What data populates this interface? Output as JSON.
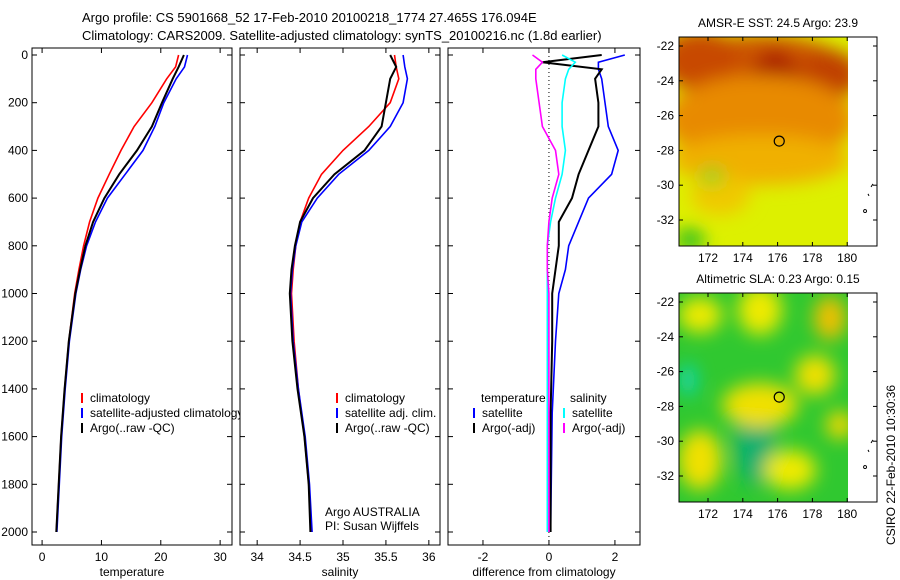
{
  "header": {
    "line1": "Argo profile: CS 5901668_52 17-Feb-2010 20100218_1774 27.465S 176.094E",
    "line2": "Climatology: CARS2009. Satellite-adjusted climatology: synTS_20100216.nc (1.8d earlier)"
  },
  "colors": {
    "climatology": "#ff0000",
    "satellite": "#0000ff",
    "argo": "#000000",
    "sal_satellite": "#00ffff",
    "sal_argo": "#ff00ff"
  },
  "credit": {
    "line1": "Argo AUSTRALIA",
    "line2": "PI: Susan Wijffels"
  },
  "timestamp": "CSIRO 22-Feb-2010 10:30:36",
  "chart_data": [
    {
      "type": "line",
      "id": "temp",
      "xlabel": "temperature",
      "ylabel": "",
      "xlim": [
        -1.7,
        32
      ],
      "ylim": [
        0,
        2000
      ],
      "y_reversed": true,
      "xticks": [
        0,
        10,
        20,
        30
      ],
      "yticks": [
        0,
        200,
        400,
        600,
        800,
        1000,
        1200,
        1400,
        1600,
        1800,
        2000
      ],
      "legend": [
        "climatology",
        "satellite-adjusted climatology",
        "Argo(..raw -QC)"
      ],
      "depth": [
        0,
        50,
        100,
        200,
        300,
        400,
        500,
        600,
        700,
        800,
        900,
        1000,
        1200,
        1400,
        1600,
        1800,
        2000
      ],
      "series": [
        {
          "name": "climatology",
          "color": "#ff0000",
          "values": [
            23,
            22.5,
            21,
            18.5,
            15.5,
            13.3,
            11.3,
            9.4,
            8,
            7,
            6.2,
            5.5,
            4.5,
            3.8,
            3.2,
            2.8,
            2.4
          ]
        },
        {
          "name": "satellite-adjusted climatology",
          "color": "#0000ff",
          "values": [
            24.5,
            24,
            22.6,
            20.5,
            19,
            17,
            14,
            11,
            9,
            7.5,
            6.5,
            5.7,
            4.6,
            3.9,
            3.3,
            2.9,
            2.5
          ]
        },
        {
          "name": "Argo(..raw -QC)",
          "color": "#000000",
          "values": [
            23.9,
            23,
            22,
            20.2,
            18.5,
            16,
            13,
            10.5,
            8.6,
            7.3,
            6.4,
            5.6,
            4.5,
            3.8,
            3.2,
            2.8,
            2.4
          ]
        }
      ]
    },
    {
      "type": "line",
      "id": "sal",
      "xlabel": "salinity",
      "ylabel": "",
      "xlim": [
        33.8,
        36.13
      ],
      "ylim": [
        0,
        2000
      ],
      "y_reversed": true,
      "xticks": [
        34,
        34.5,
        35,
        35.5,
        36
      ],
      "yticks": [
        0,
        200,
        400,
        600,
        800,
        1000,
        1200,
        1400,
        1600,
        1800,
        2000
      ],
      "legend": [
        "climatology",
        "satellite adj. clim.",
        "Argo(..raw -QC)"
      ],
      "depth": [
        0,
        50,
        100,
        200,
        300,
        400,
        500,
        600,
        700,
        800,
        900,
        1000,
        1200,
        1400,
        1600,
        1800,
        2000
      ],
      "series": [
        {
          "name": "climatology",
          "color": "#ff0000",
          "values": [
            35.6,
            35.62,
            35.65,
            35.55,
            35.3,
            35.0,
            34.75,
            34.6,
            34.5,
            34.45,
            34.42,
            34.4,
            34.43,
            34.48,
            34.55,
            34.6,
            34.63
          ]
        },
        {
          "name": "satellite adj. clim.",
          "color": "#0000ff",
          "values": [
            35.7,
            35.72,
            35.75,
            35.7,
            35.55,
            35.3,
            34.95,
            34.7,
            34.52,
            34.45,
            34.41,
            34.39,
            34.42,
            34.48,
            34.56,
            34.61,
            34.64
          ]
        },
        {
          "name": "Argo(..raw -QC)",
          "color": "#000000",
          "values": [
            35.55,
            35.62,
            35.55,
            35.5,
            35.45,
            35.25,
            34.9,
            34.65,
            34.5,
            34.44,
            34.4,
            34.38,
            34.41,
            34.47,
            34.55,
            34.6,
            34.62
          ]
        }
      ]
    },
    {
      "type": "line",
      "id": "diff",
      "xlabel": "difference from climatology",
      "ylabel": "",
      "xlim": [
        -3.06,
        2.76
      ],
      "ylim": [
        0,
        2000
      ],
      "y_reversed": true,
      "xticks": [
        -2,
        0,
        2
      ],
      "yticks": [
        0,
        200,
        400,
        600,
        800,
        1000,
        1200,
        1400,
        1600,
        1800,
        2000
      ],
      "legend_headers": [
        "temperature",
        "salinity"
      ],
      "legend": [
        "satellite",
        "Argo(-adj)",
        "satellite",
        "Argo(-adj)"
      ],
      "depth": [
        0,
        30,
        60,
        100,
        200,
        300,
        400,
        500,
        600,
        700,
        800,
        900,
        1000,
        1200,
        1500,
        2000
      ],
      "series": [
        {
          "name": "temperature satellite",
          "color": "#0000ff",
          "values": [
            2.3,
            1.5,
            1.5,
            1.6,
            1.7,
            1.8,
            2.1,
            1.9,
            1.2,
            0.9,
            0.6,
            0.5,
            0.3,
            0.2,
            0.1,
            0.05
          ]
        },
        {
          "name": "temperature Argo(-adj)",
          "color": "#000000",
          "values": [
            1.6,
            -0.2,
            1.6,
            1.4,
            1.5,
            1.5,
            1.2,
            0.9,
            0.7,
            0.3,
            0.3,
            0.2,
            0.1,
            0.1,
            0.05,
            0.05
          ]
        },
        {
          "name": "salinity satellite",
          "color": "#00ffff",
          "values": [
            0.4,
            0.8,
            0.6,
            0.5,
            0.4,
            0.4,
            0.5,
            0.4,
            0.2,
            0.05,
            -0.05,
            -0.05,
            -0.05,
            -0.05,
            -0.05,
            -0.05
          ]
        },
        {
          "name": "salinity Argo(-adj)",
          "color": "#ff00ff",
          "values": [
            -0.5,
            -0.2,
            -0.4,
            -0.4,
            -0.3,
            -0.2,
            0.2,
            0.3,
            0.1,
            0,
            -0.05,
            -0.05,
            0,
            0,
            0,
            0
          ]
        }
      ]
    },
    {
      "type": "heatmap",
      "id": "sst",
      "title": "AMSR-E SST: 24.5 Argo: 23.9",
      "xticks": [
        172,
        174,
        176,
        178,
        180
      ],
      "yticks": [
        -22,
        -24,
        -26,
        -28,
        -30,
        -32
      ],
      "xlim": [
        170.4,
        181.7
      ],
      "ylim": [
        -33.4,
        -21.5
      ],
      "argo_position": [
        176.094,
        -27.465
      ]
    },
    {
      "type": "heatmap",
      "id": "sla",
      "title": "Altimetric SLA: 0.23 Argo: 0.15",
      "xticks": [
        172,
        174,
        176,
        178,
        180
      ],
      "yticks": [
        -22,
        -24,
        -26,
        -28,
        -30,
        -32
      ],
      "xlim": [
        170.4,
        181.7
      ],
      "ylim": [
        -33.4,
        -21.5
      ],
      "argo_position": [
        176.094,
        -27.465
      ]
    }
  ]
}
